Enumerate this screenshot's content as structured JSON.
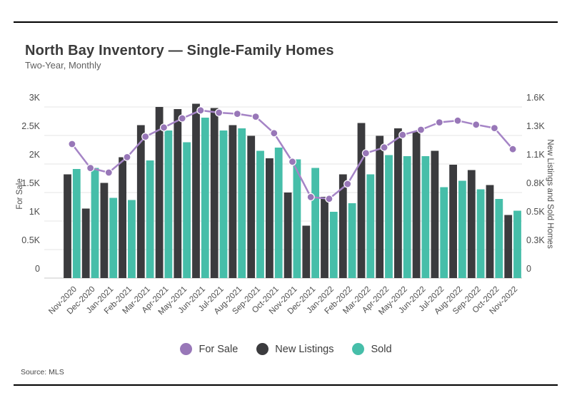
{
  "header": {
    "title": "North Bay Inventory — Single-Family Homes",
    "subtitle": "Two-Year, Monthly"
  },
  "source_line": "Source: MLS",
  "colors": {
    "for_sale_line": "#A584C6",
    "for_sale_marker": "#9877B8",
    "new_listings_bar": "#3B3B3E",
    "sold_bar": "#46BEA9",
    "gridline": "#E4E4E4",
    "baseline": "#C9C9C9",
    "tick_text": "#4D4D4D",
    "axis_title_text": "#4D4D4D"
  },
  "chart_data": {
    "type": "combo-bar-line",
    "months": [
      "Nov-2020",
      "Dec-2020",
      "Jan-2021",
      "Feb-2021",
      "Mar-2021",
      "Apr-2021",
      "May-2021",
      "Jun-2021",
      "Jul-2021",
      "Aug-2021",
      "Sep-2021",
      "Oct-2021",
      "Nov-2021",
      "Dec-2021",
      "Jan-2022",
      "Feb-2022",
      "Mar-2022",
      "Apr-2022",
      "May-2022",
      "Jun-2022",
      "Jul-2022",
      "Aug-2022",
      "Sep-2022",
      "Oct-2022",
      "Nov-2022"
    ],
    "series": [
      {
        "name": "For Sale",
        "type": "line",
        "axis": "left",
        "values": [
          2350,
          1930,
          1850,
          2120,
          2480,
          2640,
          2800,
          2940,
          2900,
          2880,
          2830,
          2540,
          2040,
          1420,
          1390,
          1650,
          2190,
          2290,
          2510,
          2600,
          2730,
          2760,
          2690,
          2630,
          2260
        ]
      },
      {
        "name": "New Listings",
        "type": "bar",
        "axis": "right",
        "values": [
          970,
          650,
          890,
          1130,
          1430,
          1600,
          1580,
          1630,
          1590,
          1430,
          1330,
          1120,
          800,
          490,
          760,
          970,
          1450,
          1330,
          1400,
          1370,
          1190,
          1060,
          1010,
          870,
          590
        ]
      },
      {
        "name": "Sold",
        "type": "bar",
        "axis": "right",
        "values": [
          1020,
          1030,
          750,
          730,
          1100,
          1380,
          1270,
          1500,
          1380,
          1400,
          1190,
          1220,
          1110,
          1030,
          620,
          700,
          970,
          1150,
          1140,
          1140,
          850,
          910,
          830,
          740,
          630
        ]
      }
    ],
    "left_axis": {
      "title": "For Sale",
      "range": [
        0,
        3000
      ],
      "tick_labels": [
        "0",
        "0.5K",
        "1K",
        "1.5K",
        "2K",
        "2.5K",
        "3K"
      ]
    },
    "right_axis": {
      "title": "New Listings and Sold Homes",
      "range": [
        0,
        1600
      ],
      "tick_labels": [
        "0",
        "0.3K",
        "0.5K",
        "0.8K",
        "1.1K",
        "1.3K",
        "1.6K"
      ]
    },
    "grid": true,
    "legend_position": "bottom-center"
  }
}
